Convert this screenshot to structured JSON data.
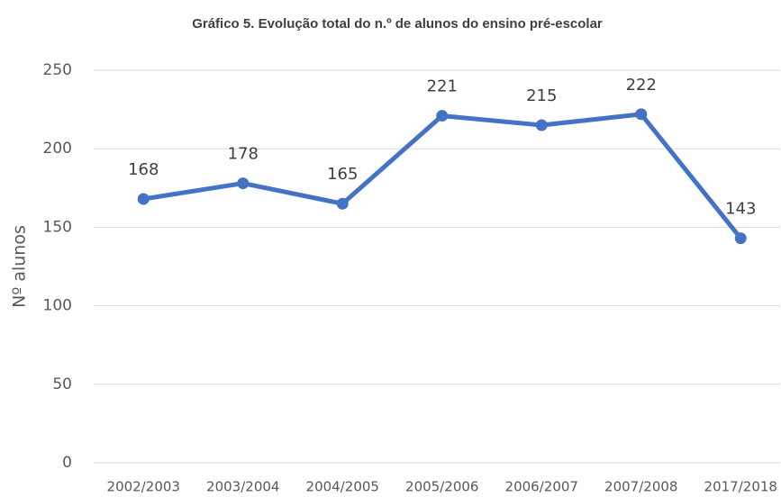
{
  "chart_data": {
    "type": "line",
    "title": "Gráfico 5. Evolução total do n.º de alunos do ensino pré-escolar",
    "y_label": "Nº alunos",
    "categories": [
      "2002/2003",
      "2003/2004",
      "2004/2005",
      "2005/2006",
      "2006/2007",
      "2007/2008",
      "2017/2018"
    ],
    "values": [
      168,
      178,
      165,
      221,
      215,
      222,
      143
    ],
    "color": "#4472c4",
    "ylim": [
      0,
      250
    ],
    "yticks": [
      0,
      50,
      100,
      150,
      200,
      250
    ],
    "grid": true
  }
}
